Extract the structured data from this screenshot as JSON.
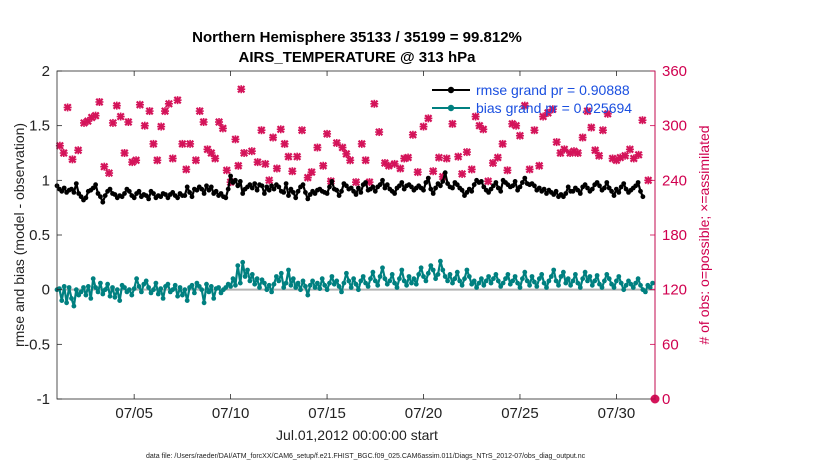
{
  "chart_data": {
    "type": "line",
    "title_line1": "Northern Hemisphere 35133 / 35199 = 99.812%",
    "title_line2": "AIRS_TEMPERATURE @ 313 hPa",
    "xlabel": "Jul.01,2012 00:00:00 start",
    "ylabel_left": "rmse and bias (model - observation)",
    "ylabel_right": "# of obs: o=possible; ×=assimilated",
    "footnote": "data file: /Users/raeder/DAI/ATM_forcXX/CAM6_setup/f.e21.FHIST_BGC.f09_025.CAM6assim.011/Diags_NTrS_2012-07/obs_diag_output.nc",
    "xlim": [
      1.0,
      32.0
    ],
    "ylim_left": [
      -1,
      2
    ],
    "ylim_right": [
      0,
      360
    ],
    "x_ticks": [
      5,
      10,
      15,
      20,
      25,
      30
    ],
    "x_tick_labels": [
      "07/05",
      "07/10",
      "07/15",
      "07/20",
      "07/25",
      "07/30"
    ],
    "y_left_ticks": [
      -1,
      -0.5,
      0,
      0.5,
      1,
      1.5,
      2
    ],
    "y_left_tick_labels": [
      "-1",
      "-0.5",
      "0",
      "0.5",
      "1",
      "1.5",
      "2"
    ],
    "y_right_ticks": [
      0,
      60,
      120,
      180,
      240,
      300,
      360
    ],
    "y_right_tick_labels": [
      "0",
      "60",
      "120",
      "180",
      "240",
      "300",
      "360"
    ],
    "legend_position": "top-right",
    "series": [
      {
        "name": "rmse grand pr = 0.90888",
        "axis": "left",
        "color": "#000000",
        "start": 1.0,
        "step": 0.125,
        "values": [
          0.95,
          0.92,
          0.9,
          0.93,
          0.89,
          0.91,
          0.92,
          0.89,
          0.97,
          0.88,
          0.85,
          0.82,
          0.84,
          0.9,
          0.91,
          0.93,
          0.96,
          0.88,
          0.85,
          0.8,
          0.86,
          0.9,
          0.92,
          0.88,
          0.87,
          0.84,
          0.86,
          0.85,
          0.88,
          0.92,
          0.9,
          0.86,
          0.84,
          0.88,
          0.9,
          0.85,
          0.87,
          0.86,
          0.83,
          0.9,
          0.88,
          0.84,
          0.86,
          0.85,
          0.88,
          0.87,
          0.84,
          0.87,
          0.89,
          0.86,
          0.84,
          0.88,
          0.86,
          0.86,
          0.94,
          0.89,
          0.85,
          0.92,
          0.91,
          0.94,
          0.92,
          0.88,
          0.95,
          0.91,
          0.94,
          0.88,
          0.9,
          0.86,
          0.88,
          0.85,
          0.84,
          0.92,
          1.04,
          0.98,
          1.0,
          0.95,
          0.99,
          0.88,
          0.92,
          0.94,
          0.96,
          0.93,
          0.97,
          0.91,
          0.96,
          0.95,
          0.88,
          0.94,
          0.91,
          0.95,
          0.92,
          0.96,
          0.94,
          0.9,
          0.89,
          0.97,
          0.86,
          0.92,
          0.89,
          0.84,
          0.9,
          0.94,
          0.96,
          0.89,
          0.83,
          0.87,
          0.9,
          0.88,
          0.91,
          0.92,
          0.9,
          0.89,
          0.88,
          0.94,
          0.99,
          0.92,
          0.91,
          0.86,
          0.9,
          0.97,
          0.95,
          0.92,
          0.93,
          0.9,
          0.87,
          0.93,
          0.89,
          0.96,
          0.98,
          0.91,
          0.92,
          0.94,
          0.9,
          0.94,
          0.96,
          1.0,
          0.93,
          0.96,
          0.92,
          0.9,
          0.88,
          0.93,
          0.95,
          0.98,
          0.92,
          0.95,
          0.96,
          0.94,
          0.91,
          0.93,
          0.95,
          0.93,
          0.91,
          0.98,
          1.02,
          0.92,
          0.88,
          0.93,
          0.97,
          0.95,
          0.99,
          1.07,
          0.97,
          0.94,
          0.93,
          0.98,
          0.96,
          0.93,
          0.91,
          0.86,
          0.89,
          0.92,
          0.9,
          0.96,
          1.0,
          0.98,
          0.99,
          0.94,
          0.91,
          0.89,
          0.92,
          0.95,
          0.98,
          0.93,
          0.9,
          1.0,
          0.98,
          0.96,
          0.94,
          0.95,
          0.99,
          0.91,
          0.94,
          0.98,
          1.02,
          0.97,
          0.96,
          0.97,
          0.95,
          0.91,
          0.93,
          0.9,
          0.92,
          0.88,
          0.91,
          0.89,
          0.87,
          0.9,
          0.85,
          0.87,
          0.85,
          0.88,
          0.94,
          0.9,
          0.9,
          0.93,
          0.91,
          0.88,
          0.94,
          0.96,
          0.93,
          0.9,
          0.92,
          0.96,
          0.98,
          0.95,
          0.91,
          0.93,
          0.98,
          0.93,
          0.9,
          0.86,
          0.92,
          0.89,
          0.94,
          0.97,
          0.92,
          0.89,
          0.91,
          0.93,
          0.95,
          0.98,
          0.9,
          0.85
        ]
      },
      {
        "name": "bias grand pr = 0.025694",
        "axis": "left",
        "color": "#008080",
        "start": 1.0,
        "step": 0.125,
        "values": [
          0.0,
          0.01,
          -0.1,
          0.03,
          -0.12,
          0.02,
          -0.08,
          -0.15,
          0.0,
          -0.05,
          -0.02,
          0.02,
          -0.05,
          0.03,
          -0.08,
          0.1,
          0.02,
          -0.02,
          0.06,
          -0.04,
          0.0,
          0.05,
          -0.06,
          0.02,
          -0.07,
          0.0,
          -0.1,
          0.04,
          0.02,
          -0.02,
          0.0,
          -0.05,
          0.01,
          0.1,
          0.03,
          -0.02,
          0.05,
          0.08,
          0.02,
          -0.03,
          0.0,
          0.06,
          -0.04,
          0.01,
          -0.08,
          0.03,
          0.05,
          -0.02,
          0.0,
          0.04,
          -0.06,
          0.02,
          -0.05,
          0.0,
          -0.1,
          0.02,
          0.04,
          -0.03,
          0.06,
          0.03,
          0.0,
          -0.12,
          0.05,
          -0.02,
          0.03,
          -0.08,
          0.01,
          0.02,
          -0.03,
          0.0,
          0.02,
          0.05,
          0.03,
          0.1,
          0.04,
          0.22,
          0.06,
          0.25,
          0.12,
          0.18,
          0.08,
          0.14,
          0.05,
          0.1,
          0.02,
          0.09,
          0.06,
          0.0,
          0.04,
          -0.02,
          0.05,
          0.12,
          0.08,
          0.15,
          0.02,
          0.06,
          0.18,
          0.04,
          0.1,
          0.02,
          0.06,
          0.0,
          0.08,
          0.03,
          -0.05,
          0.04,
          0.08,
          0.02,
          0.06,
          0.01,
          0.1,
          0.04,
          0.0,
          0.06,
          0.12,
          0.05,
          0.08,
          0.03,
          -0.02,
          0.06,
          0.15,
          0.08,
          0.02,
          0.1,
          0.05,
          0.0,
          0.08,
          0.12,
          0.06,
          0.03,
          0.1,
          0.16,
          0.08,
          0.04,
          0.12,
          0.2,
          0.1,
          0.05,
          0.08,
          0.14,
          0.06,
          0.02,
          0.1,
          0.18,
          0.08,
          0.04,
          0.12,
          0.06,
          0.1,
          0.05,
          0.14,
          0.2,
          0.12,
          0.08,
          0.15,
          0.22,
          0.18,
          0.1,
          0.14,
          0.26,
          0.18,
          0.12,
          0.08,
          0.14,
          0.06,
          0.1,
          0.16,
          0.08,
          0.04,
          0.1,
          0.18,
          0.12,
          0.05,
          0.08,
          0.02,
          0.06,
          0.1,
          0.04,
          0.08,
          0.12,
          0.06,
          0.1,
          0.14,
          0.08,
          0.03,
          0.06,
          0.1,
          0.14,
          0.05,
          0.08,
          0.12,
          0.06,
          0.02,
          0.1,
          0.16,
          0.08,
          0.04,
          0.12,
          0.07,
          0.03,
          0.1,
          0.14,
          0.06,
          0.02,
          0.08,
          0.12,
          0.18,
          0.08,
          0.04,
          0.12,
          0.16,
          0.06,
          0.1,
          0.04,
          0.08,
          0.14,
          0.06,
          0.02,
          0.1,
          0.16,
          0.08,
          0.12,
          0.04,
          0.08,
          0.13,
          0.05,
          0.02,
          0.08,
          0.14,
          0.1,
          0.05,
          0.02,
          0.08,
          0.12,
          0.06,
          0.0,
          0.04,
          0.08,
          0.05,
          0.02,
          0.06,
          0.1,
          0.04,
          0.0,
          -0.02,
          0.04,
          0.02,
          0.06
        ]
      },
      {
        "name": "obs assimilated",
        "axis": "right",
        "color": "#d4145a",
        "points": [
          [
            1.15,
            278
          ],
          [
            1.35,
            270
          ],
          [
            1.55,
            320
          ],
          [
            1.8,
            263
          ],
          [
            2.1,
            273
          ],
          [
            2.4,
            303
          ],
          [
            2.6,
            305
          ],
          [
            2.8,
            309
          ],
          [
            3.0,
            311
          ],
          [
            3.2,
            326
          ],
          [
            3.45,
            255
          ],
          [
            3.7,
            248
          ],
          [
            3.9,
            303
          ],
          [
            4.1,
            322
          ],
          [
            4.3,
            310
          ],
          [
            4.5,
            270
          ],
          [
            4.7,
            304
          ],
          [
            4.9,
            260
          ],
          [
            5.1,
            262
          ],
          [
            5.3,
            323
          ],
          [
            5.55,
            300
          ],
          [
            5.8,
            316
          ],
          [
            6.0,
            280
          ],
          [
            6.2,
            262
          ],
          [
            6.4,
            299
          ],
          [
            6.6,
            316
          ],
          [
            6.8,
            324
          ],
          [
            7.0,
            264
          ],
          [
            7.25,
            328
          ],
          [
            7.5,
            280
          ],
          [
            7.7,
            252
          ],
          [
            7.9,
            280
          ],
          [
            8.2,
            262
          ],
          [
            8.4,
            316
          ],
          [
            8.6,
            304
          ],
          [
            8.8,
            274
          ],
          [
            9.0,
            270
          ],
          [
            9.2,
            264
          ],
          [
            9.4,
            304
          ],
          [
            9.6,
            297
          ],
          [
            9.8,
            251
          ],
          [
            10.0,
            238
          ],
          [
            10.25,
            285
          ],
          [
            10.4,
            256
          ],
          [
            10.55,
            340
          ],
          [
            10.7,
            270
          ],
          [
            11.1,
            272
          ],
          [
            11.4,
            260
          ],
          [
            11.6,
            295
          ],
          [
            11.8,
            258
          ],
          [
            12.0,
            240
          ],
          [
            12.2,
            287
          ],
          [
            12.4,
            253
          ],
          [
            12.6,
            296
          ],
          [
            12.8,
            280
          ],
          [
            13.0,
            266
          ],
          [
            13.2,
            250
          ],
          [
            13.45,
            266
          ],
          [
            13.7,
            295
          ],
          [
            14.0,
            243
          ],
          [
            14.2,
            249
          ],
          [
            14.5,
            276
          ],
          [
            14.8,
            256
          ],
          [
            15.0,
            291
          ],
          [
            15.2,
            239
          ],
          [
            15.5,
            281
          ],
          [
            15.8,
            276
          ],
          [
            16.0,
            269
          ],
          [
            16.2,
            262
          ],
          [
            16.5,
            238
          ],
          [
            16.8,
            280
          ],
          [
            17.0,
            262
          ],
          [
            17.2,
            238
          ],
          [
            17.45,
            324
          ],
          [
            17.7,
            293
          ],
          [
            18.0,
            259
          ],
          [
            18.2,
            256
          ],
          [
            18.5,
            258
          ],
          [
            18.8,
            253
          ],
          [
            19.0,
            264
          ],
          [
            19.2,
            265
          ],
          [
            19.45,
            290
          ],
          [
            19.7,
            249
          ],
          [
            20.0,
            299
          ],
          [
            20.25,
            308
          ],
          [
            20.5,
            250
          ],
          [
            20.8,
            265
          ],
          [
            21.0,
            244
          ],
          [
            21.2,
            264
          ],
          [
            21.5,
            302
          ],
          [
            21.8,
            266
          ],
          [
            22.0,
            247
          ],
          [
            22.25,
            271
          ],
          [
            22.5,
            252
          ],
          [
            22.7,
            310
          ],
          [
            22.9,
            300
          ],
          [
            23.1,
            296
          ],
          [
            23.35,
            239
          ],
          [
            23.6,
            259
          ],
          [
            23.85,
            265
          ],
          [
            24.1,
            280
          ],
          [
            24.35,
            251
          ],
          [
            24.6,
            302
          ],
          [
            24.8,
            300
          ],
          [
            25.0,
            289
          ],
          [
            25.25,
            322
          ],
          [
            25.5,
            252
          ],
          [
            25.75,
            295
          ],
          [
            26.0,
            256
          ],
          [
            26.2,
            310
          ],
          [
            26.45,
            314
          ],
          [
            26.7,
            318
          ],
          [
            26.9,
            282
          ],
          [
            27.1,
            270
          ],
          [
            27.3,
            274
          ],
          [
            27.6,
            270
          ],
          [
            27.8,
            272
          ],
          [
            28.0,
            270
          ],
          [
            28.25,
            287
          ],
          [
            28.5,
            316
          ],
          [
            28.7,
            298
          ],
          [
            28.9,
            273
          ],
          [
            29.1,
            267
          ],
          [
            29.3,
            295
          ],
          [
            29.55,
            313
          ],
          [
            29.8,
            264
          ],
          [
            30.0,
            262
          ],
          [
            30.2,
            265
          ],
          [
            30.45,
            267
          ],
          [
            30.7,
            274
          ],
          [
            30.9,
            264
          ],
          [
            31.15,
            268
          ],
          [
            31.35,
            306
          ],
          [
            31.65,
            240
          ]
        ]
      },
      {
        "name": "obs possible",
        "axis": "right",
        "color": "#d4145a",
        "points": [
          [
            32.0,
            0
          ]
        ]
      }
    ]
  }
}
